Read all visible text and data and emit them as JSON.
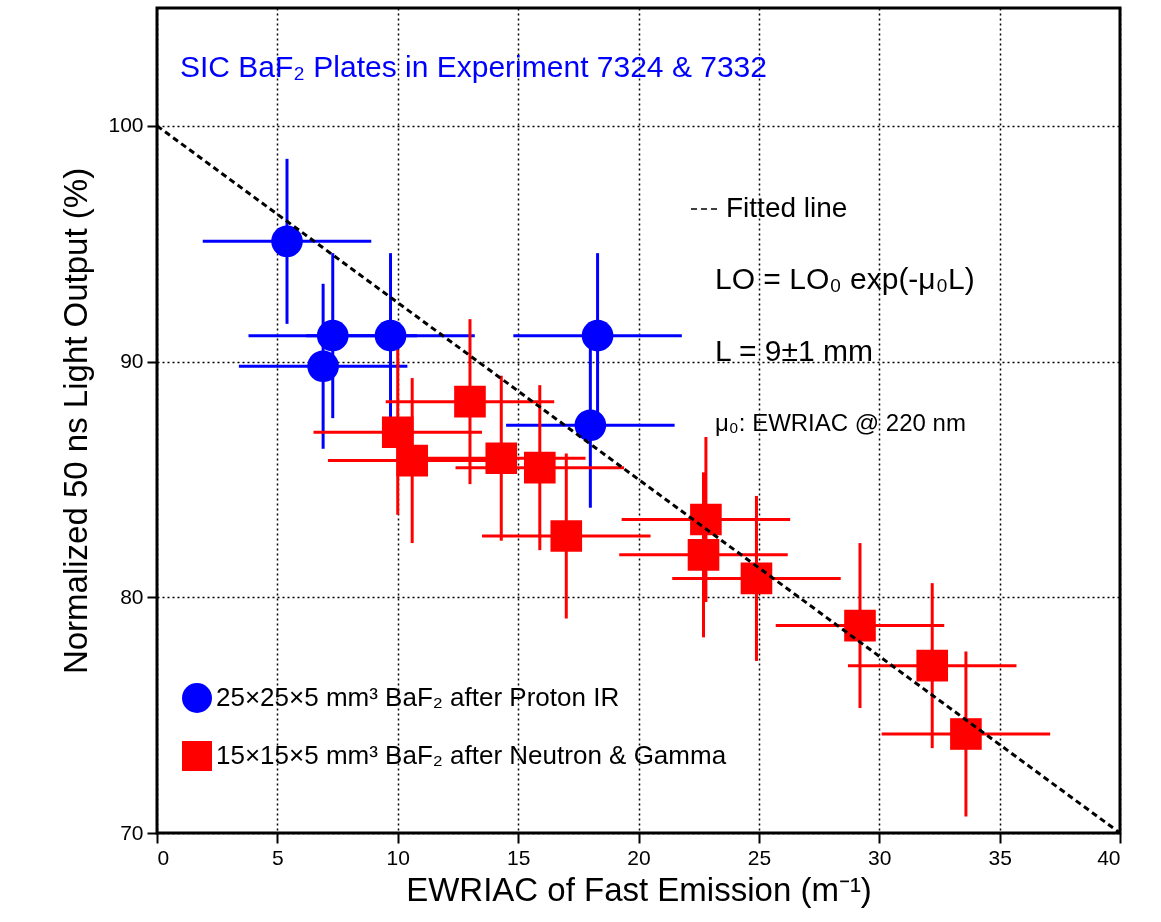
{
  "chart_data": {
    "type": "scatter",
    "title": "SIC BaF₂ Plates in Experiment 7324 & 7332",
    "xlabel": "EWRIAC of Fast Emission (m⁻¹)",
    "ylabel": "Normalized 50 ns Light Output (%)",
    "xlim": [
      0,
      40
    ],
    "xticks": [
      0,
      5,
      10,
      15,
      20,
      25,
      30,
      35,
      40
    ],
    "ylim": [
      70,
      105
    ],
    "yticks": [
      70,
      80,
      90,
      100
    ],
    "grid": true,
    "legend": "bottom left",
    "annotations": [
      "LO = LO₀ exp(-μ₀L)",
      "L = 9±1 mm",
      "μ₀: EWRIAC @ 220 nm"
    ],
    "series": [
      {
        "name": "25×25×5 mm³ BaF₂ after Proton IR",
        "marker": "circle",
        "color": "#0000ff",
        "x": [
          5.4,
          7.3,
          9.7,
          6.9,
          18.3,
          18.0
        ],
        "values": [
          95.1,
          91.1,
          91.1,
          89.8,
          91.1,
          87.3
        ],
        "errors": [
          3.5,
          3.5,
          3.5,
          3.5,
          3.5,
          3.5
        ],
        "xerrors": [
          3.5,
          3.5,
          3.5,
          3.5,
          3.5,
          3.5
        ]
      },
      {
        "name": "15×15×5 mm³ BaF₂ after Neutron & Gamma",
        "marker": "square",
        "color": "#ff0000",
        "x": [
          10.0,
          13.0,
          10.6,
          14.3,
          15.9,
          17.0,
          22.8,
          22.7,
          24.9,
          29.2,
          32.2,
          33.6
        ],
        "values": [
          87.0,
          88.3,
          85.8,
          85.9,
          85.5,
          82.6,
          83.3,
          81.8,
          80.8,
          78.8,
          77.1,
          74.2
        ],
        "errors": [
          3.5,
          3.5,
          3.5,
          3.5,
          3.5,
          3.5,
          3.5,
          3.5,
          3.5,
          3.5,
          3.5,
          3.5
        ],
        "xerrors": [
          3.5,
          3.5,
          3.5,
          3.5,
          3.5,
          3.5,
          3.5,
          3.5,
          3.5,
          3.5,
          3.5,
          3.5
        ]
      },
      {
        "name": "Fitted line",
        "type": "line",
        "line_style": "dashed",
        "color": "#000000",
        "x": [
          0,
          40
        ],
        "values": [
          100,
          70
        ]
      }
    ]
  }
}
